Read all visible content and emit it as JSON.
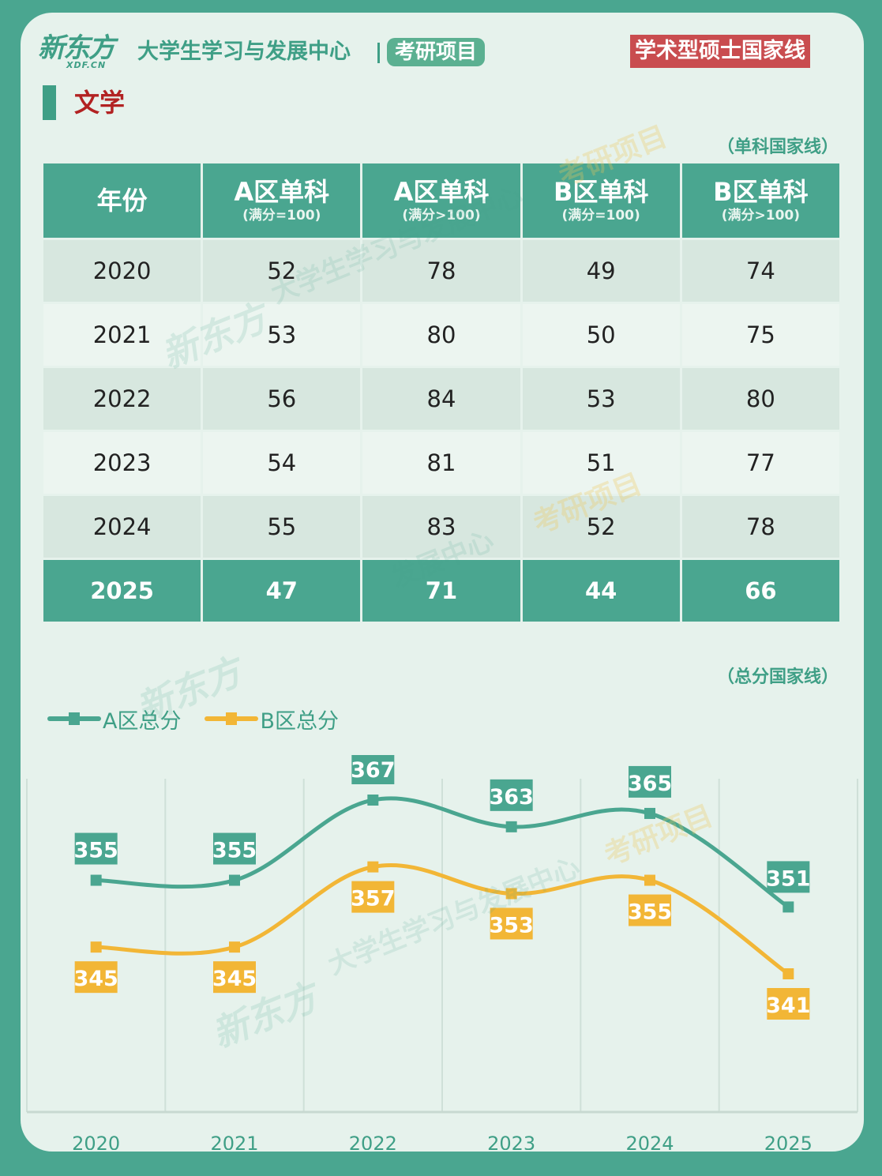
{
  "header": {
    "brand_name": "新东方",
    "brand_domain": "XDF.CN",
    "center_name": "大学生学习与发展中心",
    "program": "考研项目",
    "line_type": "学术型硕士国家线",
    "subject": "文学"
  },
  "single_table": {
    "note": "（单科国家线）",
    "headers": [
      {
        "main": "年份",
        "sub": ""
      },
      {
        "main": "A区单科",
        "sub": "(满分=100)"
      },
      {
        "main": "A区单科",
        "sub": "(满分>100)"
      },
      {
        "main": "B区单科",
        "sub": "(满分=100)"
      },
      {
        "main": "B区单科",
        "sub": "(满分>100)"
      }
    ],
    "rows": [
      [
        "2020",
        "52",
        "78",
        "49",
        "74"
      ],
      [
        "2021",
        "53",
        "80",
        "50",
        "75"
      ],
      [
        "2022",
        "56",
        "84",
        "53",
        "80"
      ],
      [
        "2023",
        "54",
        "81",
        "51",
        "77"
      ],
      [
        "2024",
        "55",
        "83",
        "52",
        "78"
      ],
      [
        "2025",
        "47",
        "71",
        "44",
        "66"
      ]
    ]
  },
  "total_note": "（总分国家线）",
  "watermarks": {
    "brand": "新东方",
    "center": "大学生学习与发展中心",
    "center_short": "发展中心",
    "program": "考研项目"
  },
  "colors": {
    "a_series": "#4aa690",
    "b_series": "#f2b636",
    "header_bg": "#4aa690",
    "badge": "#c94c4f",
    "subject": "#b22222"
  },
  "chart_data": {
    "type": "line",
    "categories": [
      "2020",
      "2021",
      "2022",
      "2023",
      "2024",
      "2025"
    ],
    "series": [
      {
        "name": "A区总分",
        "values": [
          355,
          355,
          367,
          363,
          365,
          351
        ],
        "color": "#4aa690"
      },
      {
        "name": "B区总分",
        "values": [
          345,
          345,
          357,
          353,
          355,
          341
        ],
        "color": "#f2b636"
      }
    ],
    "smooth": true,
    "legend": "top-left",
    "grid": "vertical",
    "data_labels": true
  }
}
